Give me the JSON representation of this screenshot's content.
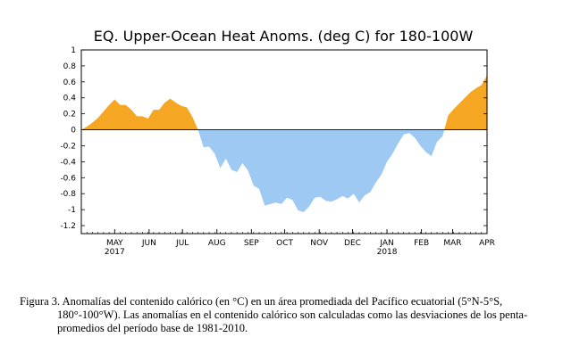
{
  "caption": "Figura 3. Anomalías del contenido calórico (en °C) en un área promediada del Pacífico ecuatorial (5°N-5°S, 180°-100°W). Las anomalías en el contenido calórico son calculadas como las desviaciones de los penta-promedios del período base de 1981-2010.",
  "chart_data": {
    "type": "area",
    "title": "EQ. Upper-Ocean Heat Anoms. (deg C) for 180-100W",
    "xlabel": "",
    "ylabel": "",
    "ylim": [
      -1.3,
      1.0
    ],
    "yticks": [
      1,
      0.8,
      0.6,
      0.4,
      0.2,
      0,
      -0.2,
      -0.4,
      -0.6,
      -0.8,
      -1,
      -1.2
    ],
    "ytick_labels": [
      "1",
      "0.8",
      "0.6",
      "0.4",
      "0.2",
      "0",
      "-0.2",
      "-0.4",
      "-0.6",
      "-0.8",
      "-1",
      "-1.2"
    ],
    "x_start": "2017-04-01",
    "x_end": "2018-04-01",
    "month_ticks": [
      {
        "date": "2017-05-01",
        "label": "MAY",
        "year": "2017"
      },
      {
        "date": "2017-06-01",
        "label": "JUN",
        "year": ""
      },
      {
        "date": "2017-07-01",
        "label": "JUL",
        "year": ""
      },
      {
        "date": "2017-08-01",
        "label": "AUG",
        "year": ""
      },
      {
        "date": "2017-09-01",
        "label": "SEP",
        "year": ""
      },
      {
        "date": "2017-10-01",
        "label": "OCT",
        "year": ""
      },
      {
        "date": "2017-11-01",
        "label": "NOV",
        "year": ""
      },
      {
        "date": "2017-12-01",
        "label": "DEC",
        "year": ""
      },
      {
        "date": "2018-01-01",
        "label": "JAN",
        "year": "2018"
      },
      {
        "date": "2018-02-01",
        "label": "FEB",
        "year": ""
      },
      {
        "date": "2018-03-01",
        "label": "MAR",
        "year": ""
      },
      {
        "date": "2018-04-01",
        "label": "APR",
        "year": ""
      }
    ],
    "positive_color": "#f5a623",
    "negative_color": "#9ec9f2",
    "grid": false,
    "series": [
      {
        "points": [
          [
            "2017-04-01",
            0.0
          ],
          [
            "2017-04-06",
            0.04
          ],
          [
            "2017-04-11",
            0.09
          ],
          [
            "2017-04-16",
            0.15
          ],
          [
            "2017-04-21",
            0.23
          ],
          [
            "2017-04-26",
            0.31
          ],
          [
            "2017-05-01",
            0.38
          ],
          [
            "2017-05-06",
            0.31
          ],
          [
            "2017-05-11",
            0.31
          ],
          [
            "2017-05-16",
            0.25
          ],
          [
            "2017-05-21",
            0.17
          ],
          [
            "2017-05-26",
            0.17
          ],
          [
            "2017-05-31",
            0.14
          ],
          [
            "2017-06-05",
            0.25
          ],
          [
            "2017-06-10",
            0.25
          ],
          [
            "2017-06-15",
            0.34
          ],
          [
            "2017-06-20",
            0.39
          ],
          [
            "2017-06-25",
            0.34
          ],
          [
            "2017-06-30",
            0.3
          ],
          [
            "2017-07-05",
            0.28
          ],
          [
            "2017-07-10",
            0.16
          ],
          [
            "2017-07-15",
            0.0
          ],
          [
            "2017-07-20",
            -0.22
          ],
          [
            "2017-07-25",
            -0.21
          ],
          [
            "2017-07-30",
            -0.3
          ],
          [
            "2017-08-04",
            -0.48
          ],
          [
            "2017-08-09",
            -0.36
          ],
          [
            "2017-08-14",
            -0.5
          ],
          [
            "2017-08-19",
            -0.53
          ],
          [
            "2017-08-24",
            -0.42
          ],
          [
            "2017-08-29",
            -0.51
          ],
          [
            "2017-09-03",
            -0.7
          ],
          [
            "2017-09-08",
            -0.74
          ],
          [
            "2017-09-13",
            -0.95
          ],
          [
            "2017-09-18",
            -0.93
          ],
          [
            "2017-09-23",
            -0.91
          ],
          [
            "2017-09-28",
            -0.93
          ],
          [
            "2017-10-03",
            -0.85
          ],
          [
            "2017-10-08",
            -0.88
          ],
          [
            "2017-10-13",
            -1.01
          ],
          [
            "2017-10-18",
            -1.03
          ],
          [
            "2017-10-23",
            -0.96
          ],
          [
            "2017-10-28",
            -0.85
          ],
          [
            "2017-11-02",
            -0.84
          ],
          [
            "2017-11-07",
            -0.89
          ],
          [
            "2017-11-12",
            -0.9
          ],
          [
            "2017-11-17",
            -0.87
          ],
          [
            "2017-11-22",
            -0.83
          ],
          [
            "2017-11-27",
            -0.86
          ],
          [
            "2017-12-02",
            -0.8
          ],
          [
            "2017-12-07",
            -0.91
          ],
          [
            "2017-12-12",
            -0.82
          ],
          [
            "2017-12-17",
            -0.78
          ],
          [
            "2017-12-22",
            -0.66
          ],
          [
            "2017-12-27",
            -0.56
          ],
          [
            "2018-01-01",
            -0.4
          ],
          [
            "2018-01-06",
            -0.3
          ],
          [
            "2018-01-11",
            -0.17
          ],
          [
            "2018-01-16",
            -0.06
          ],
          [
            "2018-01-21",
            -0.04
          ],
          [
            "2018-01-26",
            -0.1
          ],
          [
            "2018-01-31",
            -0.2
          ],
          [
            "2018-02-05",
            -0.28
          ],
          [
            "2018-02-10",
            -0.33
          ],
          [
            "2018-02-15",
            -0.15
          ],
          [
            "2018-02-20",
            -0.08
          ],
          [
            "2018-02-25",
            0.18
          ],
          [
            "2018-03-02",
            0.26
          ],
          [
            "2018-03-07",
            0.33
          ],
          [
            "2018-03-12",
            0.4
          ],
          [
            "2018-03-17",
            0.47
          ],
          [
            "2018-03-22",
            0.52
          ],
          [
            "2018-03-27",
            0.56
          ],
          [
            "2018-04-01",
            0.68
          ]
        ]
      }
    ]
  }
}
